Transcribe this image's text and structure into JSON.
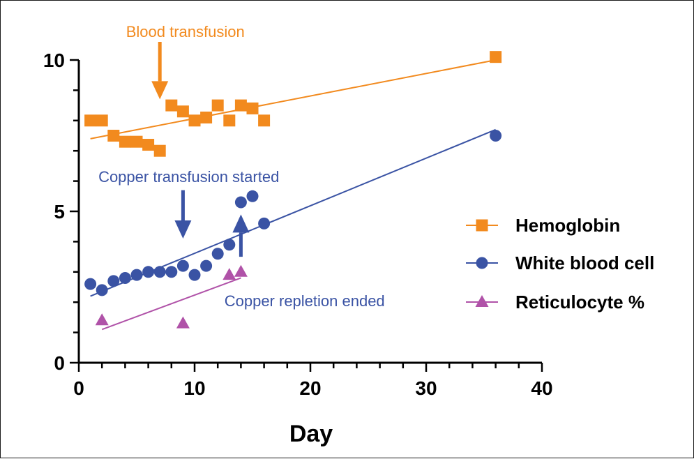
{
  "chart_data": {
    "type": "scatter",
    "title": "",
    "xlabel": "Day",
    "ylabel": "",
    "xlim": [
      0,
      40
    ],
    "ylim": [
      0,
      10
    ],
    "x_ticks": [
      "0",
      "10",
      "20",
      "30",
      "40"
    ],
    "y_ticks": [
      "0",
      "5",
      "10"
    ],
    "x_tick_values": [
      0,
      10,
      20,
      30,
      40
    ],
    "y_tick_values": [
      0,
      5,
      10
    ],
    "x_minor_step": 2,
    "y_minor_step": 1,
    "grid": false,
    "legend_position": "right",
    "series": [
      {
        "name": "Hemoglobin",
        "marker": "square",
        "color": "#f28a1e",
        "x": [
          1,
          2,
          3,
          4,
          5,
          6,
          7,
          8,
          9,
          10,
          11,
          12,
          13,
          14,
          15,
          16,
          36
        ],
        "y": [
          8.0,
          8.0,
          7.5,
          7.3,
          7.3,
          7.2,
          7.0,
          8.5,
          8.3,
          8.0,
          8.1,
          8.5,
          8.0,
          8.5,
          8.4,
          8.0,
          10.1
        ],
        "trendline": {
          "x": [
            1,
            36
          ],
          "y": [
            7.4,
            10.0
          ]
        }
      },
      {
        "name": "White blood cell",
        "marker": "circle",
        "color": "#3a53a4",
        "x": [
          1,
          2,
          3,
          4,
          5,
          6,
          7,
          8,
          9,
          10,
          11,
          12,
          13,
          14,
          15,
          16,
          36
        ],
        "y": [
          2.6,
          2.4,
          2.7,
          2.8,
          2.9,
          3.0,
          3.0,
          3.0,
          3.2,
          2.9,
          3.2,
          3.6,
          3.9,
          5.3,
          5.5,
          4.6,
          7.5
        ],
        "trendline": {
          "x": [
            1,
            36
          ],
          "y": [
            2.2,
            7.7
          ]
        }
      },
      {
        "name": "Reticulocyte %",
        "marker": "triangle",
        "color": "#b052a8",
        "x": [
          2,
          9,
          13,
          14
        ],
        "y": [
          1.4,
          1.3,
          2.9,
          3.0
        ],
        "trendline": {
          "x": [
            2,
            14
          ],
          "y": [
            1.1,
            2.8
          ]
        }
      }
    ],
    "annotations": [
      {
        "text": "Blood transfusion",
        "color": "#f28a1e",
        "label_x": 9.2,
        "label_y": 10.95,
        "arrow": {
          "x": 7,
          "y_start": 10.6,
          "y_end": 8.7,
          "direction": "down"
        }
      },
      {
        "text": "Copper transfusion started",
        "color": "#3a53a4",
        "label_x": 9.5,
        "label_y": 6.15,
        "arrow": {
          "x": 9,
          "y_start": 5.7,
          "y_end": 4.1,
          "direction": "down"
        }
      },
      {
        "text": "Copper repletion ended",
        "color": "#3a53a4",
        "label_x": 19.5,
        "label_y": 2.05,
        "arrow": {
          "x": 14,
          "y_start": 3.5,
          "y_end": 4.9,
          "direction": "up"
        }
      }
    ]
  }
}
